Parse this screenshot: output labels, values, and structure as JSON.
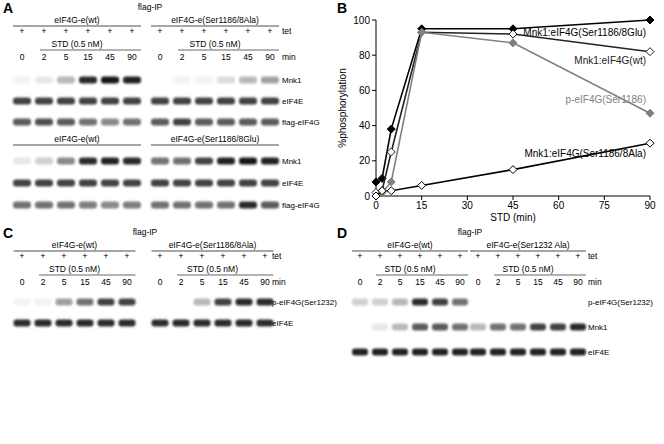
{
  "chart_data": {
    "panel": "B",
    "type": "line",
    "x": [
      0,
      2,
      5,
      15,
      45,
      90
    ],
    "xlim": [
      0,
      90
    ],
    "xticks": [
      0,
      15,
      30,
      45,
      60,
      75,
      90
    ],
    "ylim": [
      0,
      100
    ],
    "yticks": [
      0,
      20,
      40,
      60,
      80,
      100
    ],
    "x_label": "STD (min)",
    "y_label": "%phosphorylation",
    "series": [
      {
        "name": "Mnk1:eIF4G(Ser1186/8Glu)",
        "color": "#000000",
        "marker": "filled-diamond",
        "values": [
          8,
          10,
          38,
          95,
          95,
          100
        ]
      },
      {
        "name": "Mnk1:eIF4G(wt)",
        "color": "#222222",
        "marker": "open-diamond",
        "values": [
          2,
          3,
          25,
          93,
          92,
          82
        ]
      },
      {
        "name": "p-eIF4G(Ser1186)",
        "color": "#808080",
        "marker": "filled-diamond",
        "values": [
          0,
          2,
          8,
          93,
          87,
          47
        ]
      },
      {
        "name": "Mnk1:eIF4G(Ser1186/8Ala)",
        "color": "#000000",
        "marker": "open-diamond",
        "values": [
          0,
          3,
          3,
          6,
          15,
          30
        ]
      }
    ]
  },
  "blots": [
    {
      "panel": "A",
      "title": "flag-IP",
      "tet_label": "tet",
      "tet_mark": "+",
      "treatment": "STD (0.5 nM)",
      "time_label": "min",
      "times": [
        0,
        2,
        5,
        15,
        45,
        90
      ],
      "sections": [
        {
          "bands": [
            "Mnk1",
            "eIF4E",
            "flag-eIF4G"
          ],
          "groups": [
            {
              "name": "eIF4G-e(wt)",
              "intensity": [
                [
                  0.05,
                  0.1,
                  0.3,
                  0.9,
                  1,
                  0.95
                ],
                [
                  0.8,
                  0.8,
                  0.8,
                  0.8,
                  0.8,
                  0.8
                ],
                [
                  0.7,
                  0.75,
                  0.7,
                  0.6,
                  0.5,
                  0.6
                ]
              ]
            },
            {
              "name": "eIF4G-e(Ser1186/8Ala)",
              "intensity": [
                [
                  0,
                  0.05,
                  0.05,
                  0.15,
                  0.3,
                  0.4
                ],
                [
                  0.8,
                  0.8,
                  0.8,
                  0.8,
                  0.8,
                  0.8
                ],
                [
                  0.7,
                  0.8,
                  0.7,
                  0.7,
                  0.7,
                  0.7
                ]
              ]
            }
          ]
        },
        {
          "bands": [
            "Mnk1",
            "eIF4E",
            "flag-eIF4G"
          ],
          "groups": [
            {
              "name": "eIF4G-e(wt)",
              "intensity": [
                [
                  0.1,
                  0.2,
                  0.5,
                  0.9,
                  0.95,
                  0.9
                ],
                [
                  0.8,
                  0.8,
                  0.8,
                  0.8,
                  0.8,
                  0.8
                ],
                [
                  0.6,
                  0.6,
                  0.6,
                  0.55,
                  0.5,
                  0.55
                ]
              ]
            },
            {
              "name": "eIF4G-e(Ser1186/8Glu)",
              "intensity": [
                [
                  0.6,
                  0.6,
                  0.8,
                  0.95,
                  1,
                  0.95
                ],
                [
                  0.8,
                  0.8,
                  0.8,
                  0.8,
                  0.8,
                  0.8
                ],
                [
                  0.6,
                  0.6,
                  0.6,
                  0.6,
                  0.9,
                  0.7
                ]
              ]
            }
          ]
        }
      ]
    },
    {
      "panel": "C",
      "title": "flag-IP",
      "tet_label": "tet",
      "tet_mark": "+",
      "treatment": "STD (0.5 nM)",
      "time_label": "min",
      "times": [
        0,
        2,
        5,
        15,
        45,
        90
      ],
      "sections": [
        {
          "bands": [
            "p-eIF4G(Ser1232)",
            "eIF4E"
          ],
          "groups": [
            {
              "name": "eIF4G-e(wt)",
              "intensity": [
                [
                  0.05,
                  0.05,
                  0.4,
                  0.6,
                  0.8,
                  0.8
                ],
                [
                  0.9,
                  0.9,
                  0.9,
                  0.9,
                  0.9,
                  0.9
                ]
              ]
            },
            {
              "name": "eIF4G-e(Ser1186/8Ala)",
              "intensity": [
                [
                  0,
                  0,
                  0.3,
                  0.8,
                  0.9,
                  0.9
                ],
                [
                  0.9,
                  0.9,
                  0.9,
                  0.9,
                  0.9,
                  0.9
                ]
              ]
            }
          ]
        }
      ]
    },
    {
      "panel": "D",
      "title": "flag-IP",
      "tet_label": "tet",
      "tet_mark": "+",
      "treatment": "STD (0.5 nM)",
      "time_label": "min",
      "times": [
        0,
        2,
        5,
        15,
        45,
        90
      ],
      "sections": [
        {
          "bands": [
            "p-eIF4G(Ser1232)",
            "Mnk1",
            "eIF4E"
          ],
          "groups": [
            {
              "name": "eIF4G-e(wt)",
              "intensity": [
                [
                  0.2,
                  0.2,
                  0.3,
                  0.9,
                  0.8,
                  0.6
                ],
                [
                  0,
                  0.1,
                  0.3,
                  0.7,
                  0.7,
                  0.6
                ],
                [
                  0.95,
                  0.95,
                  0.95,
                  0.95,
                  0.95,
                  0.95
                ]
              ]
            },
            {
              "name": "eIF4G-e(Ser1232 Ala)",
              "intensity": [
                [
                  0,
                  0,
                  0,
                  0,
                  0,
                  0
                ],
                [
                  0.3,
                  0.6,
                  0.6,
                  0.8,
                  0.8,
                  0.9
                ],
                [
                  0.95,
                  0.95,
                  0.95,
                  0.95,
                  0.95,
                  0.95
                ]
              ]
            }
          ]
        }
      ]
    }
  ]
}
